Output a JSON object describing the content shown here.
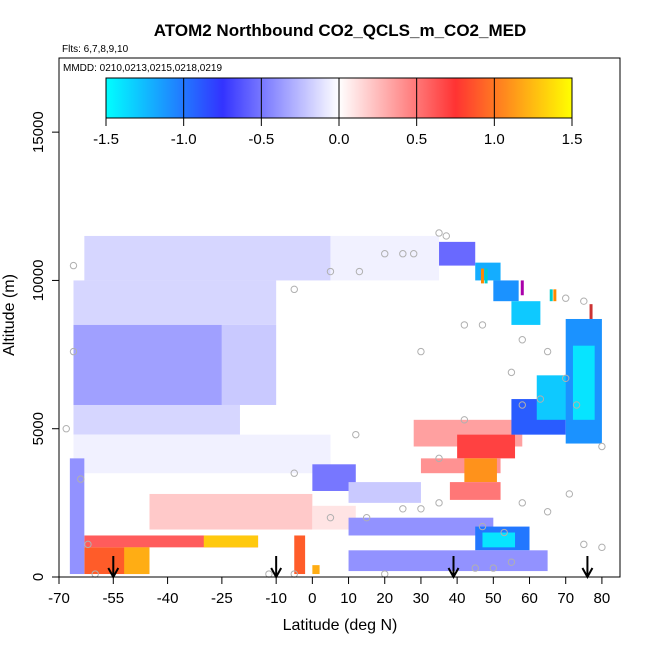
{
  "chart_data": {
    "type": "heatmap",
    "title": "ATOM2 Northbound CO2_QCLS_m_CO2_MED",
    "annotations": [
      "Flts: 6,7,8,9,10",
      "MMDD: 0210,0213,0215,0218,0219"
    ],
    "xlabel": "Latitude (deg N)",
    "ylabel": "Altitude (m)",
    "xlim": [
      -70,
      85
    ],
    "ylim": [
      0,
      17500
    ],
    "x_ticks": [
      -70,
      -55,
      -40,
      -25,
      -10,
      0,
      10,
      20,
      30,
      40,
      50,
      60,
      70,
      80
    ],
    "x_tick_labels": [
      "-70",
      "-55",
      "-40",
      "-25",
      "-10",
      "0",
      "10",
      "20",
      "30",
      "40",
      "50",
      "60",
      "70",
      "80"
    ],
    "y_ticks": [
      0,
      5000,
      10000,
      15000
    ],
    "y_tick_labels": [
      "0",
      "5000",
      "10000",
      "15000"
    ],
    "colorbar": {
      "range": [
        -1.5,
        1.5
      ],
      "ticks": [
        "-1.5",
        "-1.0",
        "-0.5",
        "0.0",
        "0.5",
        "1.0",
        "1.5"
      ],
      "colors": [
        "#00ffff",
        "#3333ff",
        "#ffffff",
        "#ff3333",
        "#ffff00"
      ]
    },
    "cells": [
      {
        "x0": -63,
        "x1": 5,
        "y0": 10000,
        "y1": 11500,
        "value": -0.15
      },
      {
        "x0": 5,
        "x1": 35,
        "y0": 10000,
        "y1": 11500,
        "value": -0.05
      },
      {
        "x0": 35,
        "x1": 45,
        "y0": 10500,
        "y1": 11300,
        "value": -0.55
      },
      {
        "x0": 45,
        "x1": 52,
        "y0": 10000,
        "y1": 10600,
        "value": -1.2
      },
      {
        "x0": 50,
        "x1": 57,
        "y0": 9300,
        "y1": 10000,
        "value": -1.1
      },
      {
        "x0": 55,
        "x1": 63,
        "y0": 8500,
        "y1": 9300,
        "value": -1.3
      },
      {
        "x0": -66,
        "x1": -10,
        "y0": 8500,
        "y1": 10000,
        "value": -0.15
      },
      {
        "x0": -66,
        "x1": -25,
        "y0": 5800,
        "y1": 8500,
        "value": -0.35
      },
      {
        "x0": -25,
        "x1": -10,
        "y0": 5800,
        "y1": 8500,
        "value": -0.2
      },
      {
        "x0": -66,
        "x1": -20,
        "y0": 4800,
        "y1": 5800,
        "value": -0.15
      },
      {
        "x0": -66,
        "x1": 5,
        "y0": 3500,
        "y1": 4800,
        "value": -0.05
      },
      {
        "x0": 28,
        "x1": 58,
        "y0": 4400,
        "y1": 5300,
        "value": 0.35
      },
      {
        "x0": 40,
        "x1": 56,
        "y0": 4000,
        "y1": 4800,
        "value": 0.7
      },
      {
        "x0": 30,
        "x1": 52,
        "y0": 3500,
        "y1": 4000,
        "value": 0.4
      },
      {
        "x0": 42,
        "x1": 51,
        "y0": 3200,
        "y1": 4000,
        "value": 1.1
      },
      {
        "x0": 38,
        "x1": 52,
        "y0": 2600,
        "y1": 3200,
        "value": 0.5
      },
      {
        "x0": 55,
        "x1": 70,
        "y0": 4800,
        "y1": 6000,
        "value": -0.9
      },
      {
        "x0": 62,
        "x1": 72,
        "y0": 5300,
        "y1": 6800,
        "value": -1.3
      },
      {
        "x0": 70,
        "x1": 80,
        "y0": 4500,
        "y1": 8700,
        "value": -1.1
      },
      {
        "x0": 72,
        "x1": 78,
        "y0": 5300,
        "y1": 7800,
        "value": -1.4
      },
      {
        "x0": 0,
        "x1": 12,
        "y0": 2900,
        "y1": 3800,
        "value": -0.5
      },
      {
        "x0": 10,
        "x1": 30,
        "y0": 2500,
        "y1": 3200,
        "value": -0.2
      },
      {
        "x0": -45,
        "x1": 0,
        "y0": 1600,
        "y1": 2800,
        "value": 0.2
      },
      {
        "x0": 0,
        "x1": 12,
        "y0": 1600,
        "y1": 2400,
        "value": 0.1
      },
      {
        "x0": 10,
        "x1": 50,
        "y0": 1400,
        "y1": 2000,
        "value": -0.4
      },
      {
        "x0": 45,
        "x1": 60,
        "y0": 900,
        "y1": 1700,
        "value": -1.0
      },
      {
        "x0": 47,
        "x1": 56,
        "y0": 1000,
        "y1": 1500,
        "value": -1.4
      },
      {
        "x0": 10,
        "x1": 65,
        "y0": 200,
        "y1": 900,
        "value": -0.4
      },
      {
        "x0": -63,
        "x1": -15,
        "y0": 1000,
        "y1": 1400,
        "value": 0.6
      },
      {
        "x0": -30,
        "x1": -15,
        "y0": 1000,
        "y1": 1400,
        "value": 1.3
      },
      {
        "x0": -63,
        "x1": -45,
        "y0": 100,
        "y1": 1000,
        "value": 0.9
      },
      {
        "x0": -52,
        "x1": -45,
        "y0": 100,
        "y1": 1000,
        "value": 1.2
      },
      {
        "x0": -67,
        "x1": -63,
        "y0": 100,
        "y1": 4000,
        "value": -0.4
      },
      {
        "x0": -5,
        "x1": -2,
        "y0": 100,
        "y1": 1400,
        "value": 0.9
      },
      {
        "x0": 0,
        "x1": 2,
        "y0": 100,
        "y1": 400,
        "value": 1.2
      }
    ],
    "points": [
      [
        -66,
        10500
      ],
      [
        -66,
        7600
      ],
      [
        -68,
        5000
      ],
      [
        -64,
        3300
      ],
      [
        -62,
        1100
      ],
      [
        -5,
        9700
      ],
      [
        5,
        10300
      ],
      [
        13,
        10300
      ],
      [
        20,
        10900
      ],
      [
        25,
        10900
      ],
      [
        28,
        10900
      ],
      [
        35,
        11600
      ],
      [
        37,
        11500
      ],
      [
        30,
        7600
      ],
      [
        42,
        8500
      ],
      [
        47,
        8500
      ],
      [
        58,
        8000
      ],
      [
        65,
        7600
      ],
      [
        70,
        6700
      ],
      [
        63,
        6000
      ],
      [
        58,
        5800
      ],
      [
        55,
        6900
      ],
      [
        42,
        5300
      ],
      [
        35,
        4000
      ],
      [
        12,
        4800
      ],
      [
        -5,
        3500
      ],
      [
        5,
        2000
      ],
      [
        15,
        2000
      ],
      [
        25,
        2300
      ],
      [
        30,
        2300
      ],
      [
        35,
        2500
      ],
      [
        47,
        1700
      ],
      [
        53,
        1500
      ],
      [
        58,
        2500
      ],
      [
        65,
        2200
      ],
      [
        71,
        2800
      ],
      [
        75,
        1100
      ],
      [
        80,
        1000
      ],
      [
        80,
        4400
      ],
      [
        73,
        5800
      ],
      [
        75,
        9300
      ],
      [
        70,
        9400
      ],
      [
        55,
        500
      ],
      [
        50,
        300
      ],
      [
        45,
        300
      ],
      [
        20,
        100
      ],
      [
        -5,
        100
      ],
      [
        -12,
        100
      ],
      [
        -60,
        100
      ]
    ],
    "markers": [
      {
        "x": 47,
        "y0": 9900,
        "y1": 10400,
        "color": "#ff8800"
      },
      {
        "x": 48,
        "y0": 9900,
        "y1": 10400,
        "color": "#00cccc"
      },
      {
        "x": 58,
        "y0": 9500,
        "y1": 10000,
        "color": "#aa00aa"
      },
      {
        "x": 66,
        "y0": 9300,
        "y1": 9700,
        "color": "#00cccc"
      },
      {
        "x": 67,
        "y0": 9300,
        "y1": 9700,
        "color": "#ff8800"
      },
      {
        "x": 77,
        "y0": 8700,
        "y1": 9200,
        "color": "#cc3333"
      }
    ],
    "arrows_x": [
      -55,
      -10,
      39,
      76
    ]
  }
}
